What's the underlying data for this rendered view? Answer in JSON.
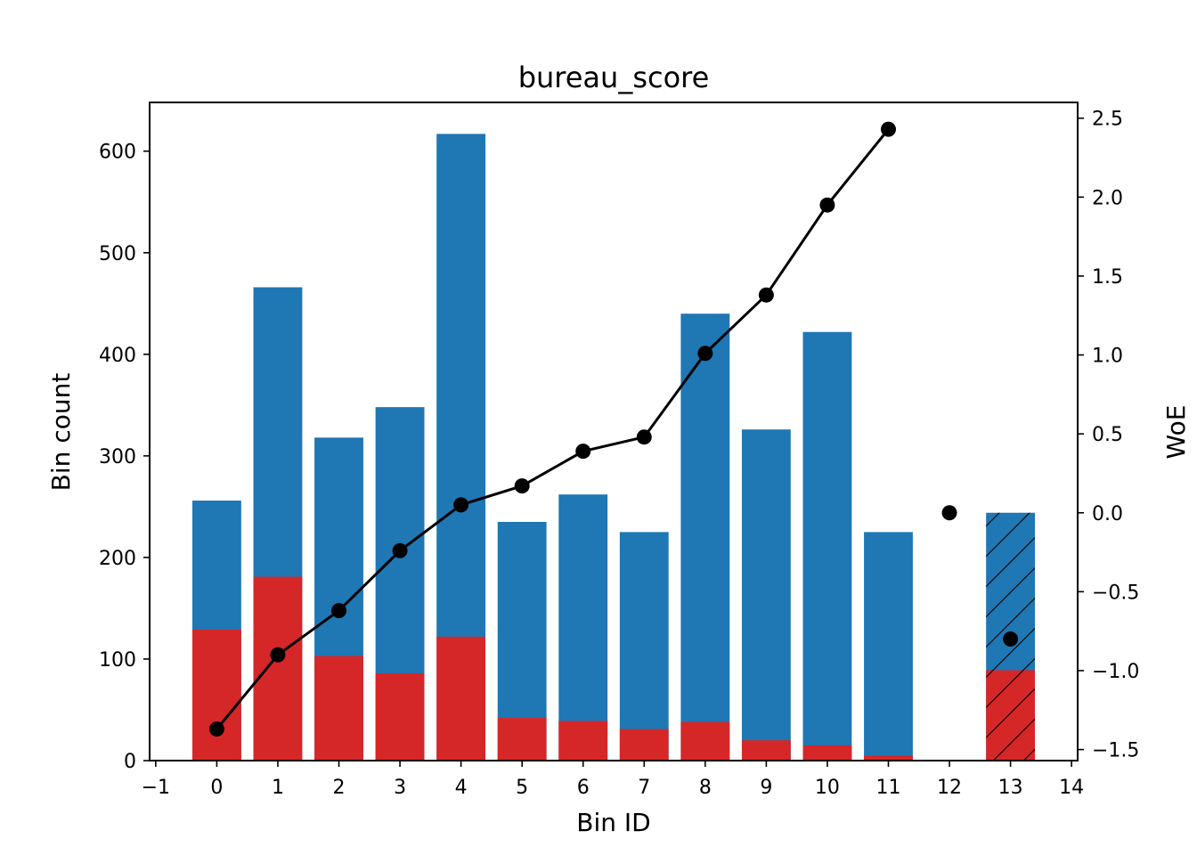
{
  "chart_data": {
    "type": "bar",
    "title": "bureau_score",
    "xlabel": "Bin ID",
    "ylabel": "Bin count",
    "y2label": "WoE",
    "x": [
      0,
      1,
      2,
      3,
      4,
      5,
      6,
      7,
      8,
      9,
      10,
      11,
      12,
      13
    ],
    "xlim": [
      -1.1,
      14.1
    ],
    "ylim": [
      0,
      648
    ],
    "y2lim": [
      -1.57,
      2.6
    ],
    "xticks": [
      -1,
      0,
      1,
      2,
      3,
      4,
      5,
      6,
      7,
      8,
      9,
      10,
      11,
      12,
      13,
      14
    ],
    "yticks": [
      0,
      100,
      200,
      300,
      400,
      500,
      600
    ],
    "y2ticks": [
      -1.5,
      -1.0,
      -0.5,
      0.0,
      0.5,
      1.0,
      1.5,
      2.0,
      2.5
    ],
    "grid": false,
    "series": [
      {
        "kind": "bar",
        "color": "#1f77b4",
        "values": [
          256,
          466,
          318,
          348,
          617,
          235,
          262,
          225,
          440,
          326,
          422,
          225,
          0,
          244
        ]
      },
      {
        "kind": "bar",
        "color": "#d62728",
        "values": [
          129,
          181,
          103,
          86,
          122,
          42,
          39,
          31,
          38,
          20,
          15,
          5,
          0,
          89
        ]
      },
      {
        "kind": "line",
        "axis": "right",
        "color": "#000000",
        "x": [
          0,
          1,
          2,
          3,
          4,
          5,
          6,
          7,
          8,
          9,
          10,
          11
        ],
        "values": [
          -1.37,
          -0.9,
          -0.62,
          -0.24,
          0.05,
          0.17,
          0.39,
          0.48,
          1.01,
          1.38,
          1.95,
          2.43
        ]
      },
      {
        "kind": "scatter",
        "axis": "right",
        "color": "#000000",
        "x": [
          12,
          13
        ],
        "values": [
          0.0,
          -0.8
        ]
      }
    ],
    "hatched_bins": [
      13
    ],
    "empty_bins": [
      12
    ]
  }
}
